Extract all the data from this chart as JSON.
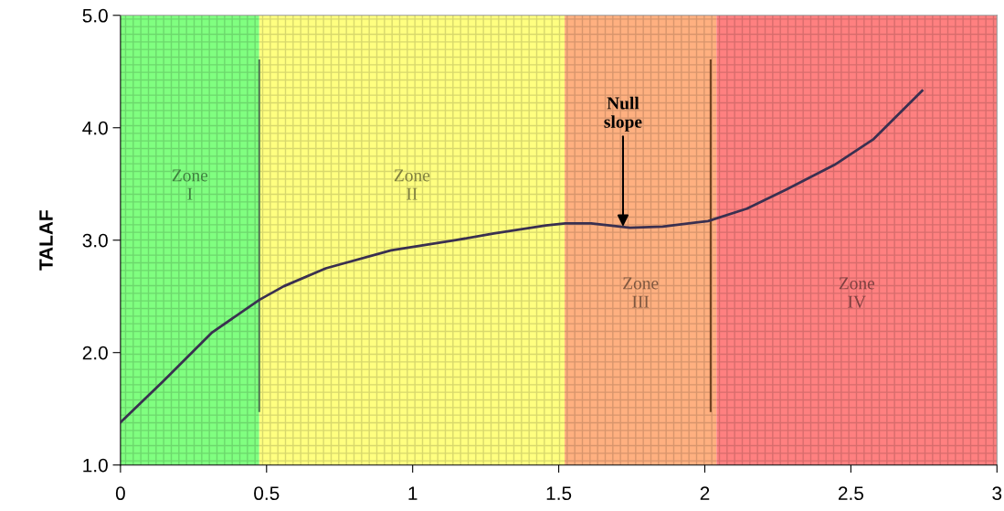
{
  "chart_data": {
    "type": "line",
    "ylabel": "TALAF",
    "x": [
      0,
      0.148,
      0.314,
      0.476,
      0.559,
      0.703,
      0.926,
      1.148,
      1.278,
      1.456,
      1.522,
      1.611,
      1.744,
      1.856,
      2.011,
      2.144,
      2.278,
      2.444,
      2.578,
      2.744
    ],
    "series": [
      {
        "color": "#3a3050",
        "values": [
          1.38,
          1.75,
          2.18,
          2.47,
          2.59,
          2.75,
          2.91,
          3.0,
          3.06,
          3.13,
          3.15,
          3.15,
          3.11,
          3.12,
          3.17,
          3.28,
          3.45,
          3.67,
          3.9,
          4.33
        ]
      }
    ],
    "xlim": [
      0,
      3
    ],
    "xticks": [
      0,
      0.5,
      1,
      1.5,
      2,
      2.5,
      3
    ],
    "ylim": [
      1,
      5
    ],
    "yticks": [
      {
        "value": 1,
        "label": "1.0"
      },
      {
        "value": 2,
        "label": "2.0"
      },
      {
        "value": 3,
        "label": "3.0"
      },
      {
        "value": 4,
        "label": "4.0"
      },
      {
        "value": 5,
        "label": "5.0"
      }
    ],
    "bands": [
      {
        "axis": "x",
        "from": 0,
        "to": 0.475,
        "label": "Zone\nI",
        "color": "#80ff80"
      },
      {
        "axis": "x",
        "from": 0.475,
        "to": 1.52,
        "label": "Zone\nII",
        "color": "#ffff80"
      },
      {
        "axis": "x",
        "from": 1.52,
        "to": 2.04,
        "label": "Zone\nIII",
        "color": "#ffb080"
      },
      {
        "axis": "x",
        "from": 2.04,
        "to": 3,
        "label": "Zone\nIV",
        "color": "#ff8080"
      }
    ],
    "ref_lines": [
      {
        "axis": "x",
        "value": 0.475,
        "color": "#507850"
      },
      {
        "axis": "x",
        "value": 2.02,
        "color": "#704020"
      }
    ],
    "annotations": [
      {
        "text": "Null\nslope",
        "x": 1.72,
        "y": 3.12
      }
    ],
    "grid": false,
    "marker": "none",
    "line_style": "solid"
  }
}
